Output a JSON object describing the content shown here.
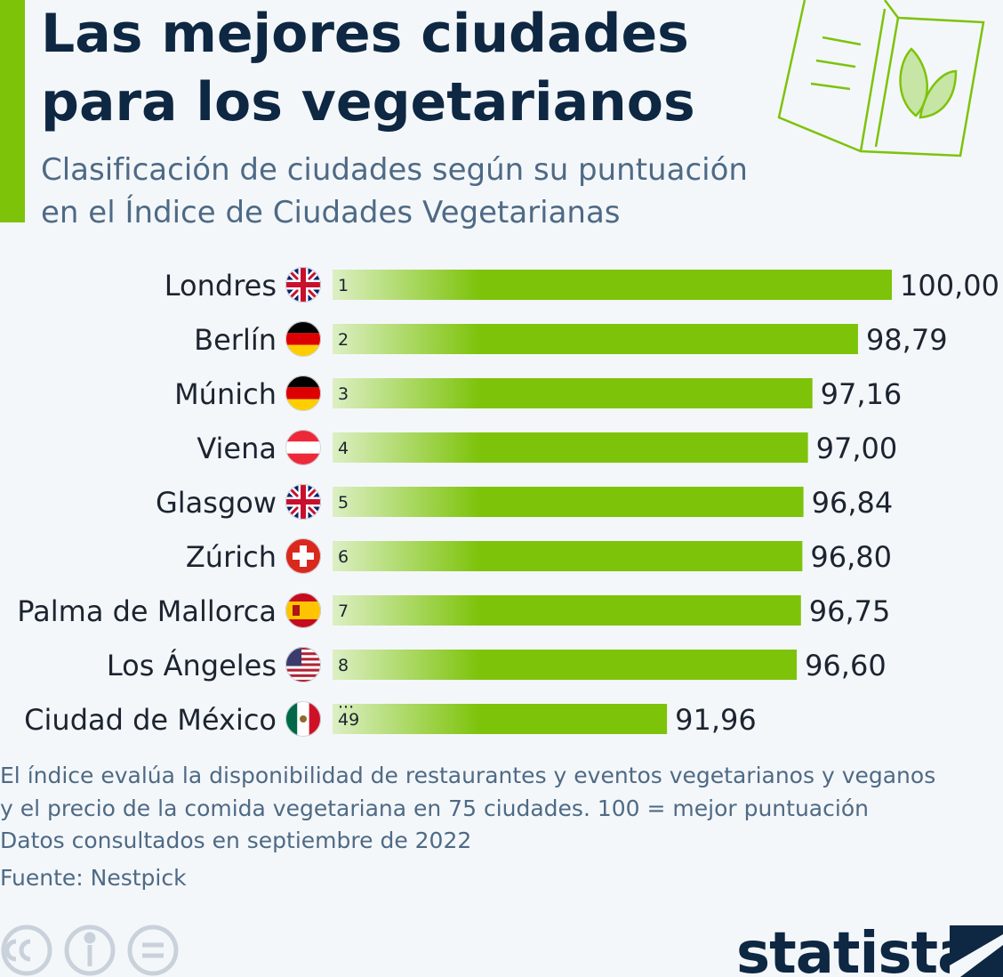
{
  "chart_data": {
    "type": "bar",
    "orientation": "horizontal",
    "title": [
      "Las mejores ciudades",
      "para los vegetarianos"
    ],
    "subtitle": [
      "Clasificación de ciudades según su puntuación",
      "en el Índice de Ciudades Vegetarianas"
    ],
    "categories": [
      "Londres",
      "Berlín",
      "Múnich",
      "Viena",
      "Glasgow",
      "Zúrich",
      "Palma de Mallorca",
      "Los Ángeles",
      "Ciudad de México"
    ],
    "ranks": [
      1,
      2,
      3,
      4,
      5,
      6,
      7,
      8,
      49
    ],
    "ellipsis": "...",
    "values": [
      100.0,
      98.79,
      97.16,
      97.0,
      96.84,
      96.8,
      96.75,
      96.6,
      91.96
    ],
    "value_labels": [
      "100,00",
      "98,79",
      "97,16",
      "97,00",
      "96,84",
      "96,80",
      "96,75",
      "96,60",
      "91,96"
    ],
    "color": "#7dc30a",
    "xlim": [
      80,
      100
    ],
    "notes": [
      "El índice evalúa la disponibilidad de restaurantes y eventos vegetarianos y veganos",
      "y el precio de la comida vegetariana en 75 ciudades. 100 = mejor puntuación",
      "Datos consultados en septiembre de 2022"
    ],
    "source": "Fuente: Nestpick",
    "logo": "statista"
  }
}
